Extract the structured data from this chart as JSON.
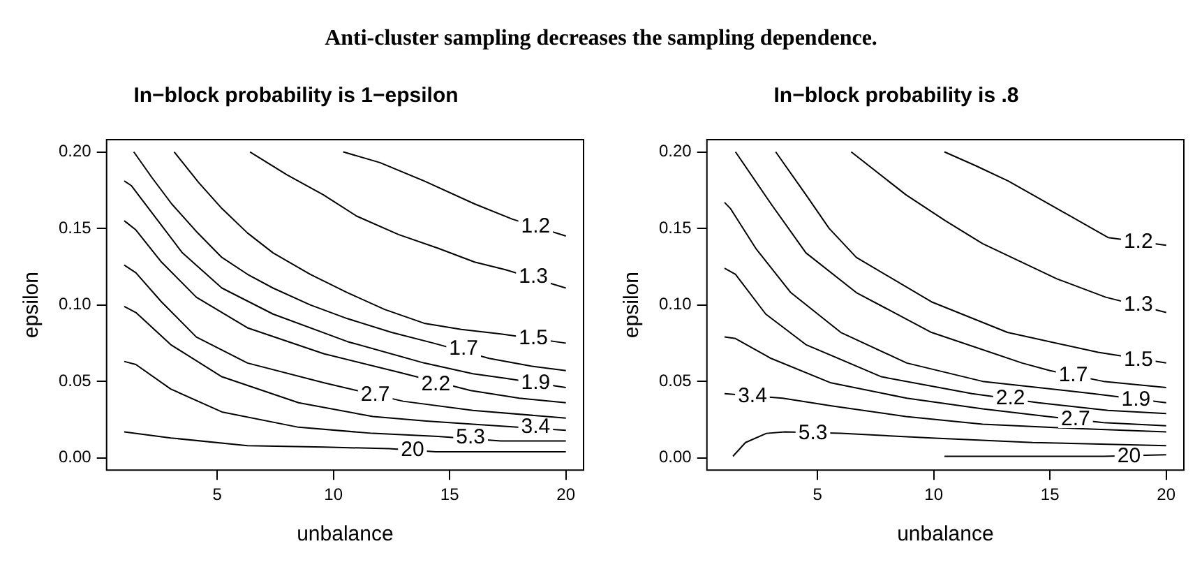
{
  "chart_data": [
    {
      "type": "line",
      "title": "In−block probability is 1−epsilon",
      "xlabel": "unbalance",
      "ylabel": "epsilon",
      "xlim": [
        0.24,
        20.76
      ],
      "ylim": [
        -0.008,
        0.208
      ],
      "xticks": [
        5,
        10,
        15,
        20
      ],
      "yticks": [
        {
          "value": 0,
          "label": "0.00"
        },
        {
          "value": 0.05,
          "label": "0.05"
        },
        {
          "value": 0.1,
          "label": "0.10"
        },
        {
          "value": 0.15,
          "label": "0.15"
        },
        {
          "value": 0.2,
          "label": "0.20"
        }
      ],
      "grid": false,
      "marker": "none",
      "line_style": "solid",
      "annotations": [
        "Anti-cluster sampling decreases the sampling dependence.",
        {
          "text": "1.2",
          "x": 18.7,
          "y": 0.151
        },
        {
          "text": "1.3",
          "x": 18.6,
          "y": 0.118
        },
        {
          "text": "1.5",
          "x": 18.6,
          "y": 0.078
        },
        {
          "text": "1.7",
          "x": 15.6,
          "y": 0.071
        },
        {
          "text": "1.9",
          "x": 18.7,
          "y": 0.049
        },
        {
          "text": "2.2",
          "x": 14.4,
          "y": 0.048
        },
        {
          "text": "2.7",
          "x": 11.8,
          "y": 0.041
        },
        {
          "text": "3.4",
          "x": 18.7,
          "y": 0.02
        },
        {
          "text": "5.3",
          "x": 15.9,
          "y": 0.013
        },
        {
          "text": "20",
          "x": 13.4,
          "y": 0.005
        }
      ],
      "series": [
        {
          "color": "#000000",
          "x": [
            10.42,
            12,
            13.9,
            16.07,
            17.7,
            20
          ],
          "values": [
            0.2,
            0.193,
            0.181,
            0.166,
            0.156,
            0.145
          ]
        },
        {
          "color": "#000000",
          "x": [
            6.41,
            8,
            9.56,
            11,
            12.8,
            14.5,
            16.07,
            17.4,
            20
          ],
          "values": [
            0.2,
            0.185,
            0.172,
            0.158,
            0.146,
            0.137,
            0.128,
            0.123,
            0.111
          ]
        },
        {
          "color": "#000000",
          "x": [
            3.15,
            4.2,
            5.2,
            6.3,
            7.4,
            9,
            10.6,
            12.2,
            13.9,
            15.5,
            17.2,
            20
          ],
          "values": [
            0.2,
            0.18,
            0.163,
            0.147,
            0.134,
            0.12,
            0.108,
            0.097,
            0.088,
            0.084,
            0.081,
            0.075
          ]
        },
        {
          "color": "#000000",
          "x": [
            1.41,
            2.2,
            3.04,
            4.1,
            5.2,
            6.3,
            7.4,
            9,
            10.6,
            12.5,
            14.3,
            16.7,
            18.5,
            20
          ],
          "values": [
            0.2,
            0.183,
            0.166,
            0.148,
            0.131,
            0.12,
            0.111,
            0.1,
            0.091,
            0.082,
            0.075,
            0.065,
            0.06,
            0.057
          ]
        },
        {
          "color": "#000000",
          "x": [
            1,
            1.3,
            2.2,
            3.5,
            5.2,
            7.4,
            10.6,
            13.9,
            16,
            17.4,
            20
          ],
          "values": [
            0.181,
            0.178,
            0.16,
            0.134,
            0.111,
            0.094,
            0.076,
            0.062,
            0.055,
            0.052,
            0.046
          ]
        },
        {
          "color": "#000000",
          "x": [
            1,
            1.5,
            2.6,
            4.1,
            6.3,
            9.6,
            12.8,
            15.9,
            18,
            20
          ],
          "values": [
            0.155,
            0.149,
            0.128,
            0.105,
            0.085,
            0.068,
            0.056,
            0.044,
            0.039,
            0.036
          ]
        },
        {
          "color": "#000000",
          "x": [
            1,
            1.5,
            2.6,
            4.1,
            6.3,
            9.6,
            13,
            16,
            20
          ],
          "values": [
            0.126,
            0.121,
            0.102,
            0.079,
            0.062,
            0.049,
            0.037,
            0.031,
            0.026
          ]
        },
        {
          "color": "#000000",
          "x": [
            1,
            1.5,
            3,
            5.2,
            8.5,
            11.7,
            14,
            16,
            20
          ],
          "values": [
            0.099,
            0.095,
            0.074,
            0.053,
            0.036,
            0.027,
            0.024,
            0.022,
            0.018
          ]
        },
        {
          "color": "#000000",
          "x": [
            1,
            1.5,
            3,
            5.2,
            8.5,
            11.7,
            14.5,
            17.2,
            20
          ],
          "values": [
            0.063,
            0.061,
            0.045,
            0.03,
            0.02,
            0.016,
            0.014,
            0.011,
            0.011
          ]
        },
        {
          "color": "#000000",
          "x": [
            1,
            3,
            6.3,
            9.6,
            12.4,
            14.4,
            20
          ],
          "values": [
            0.017,
            0.013,
            0.008,
            0.007,
            0.006,
            0.004,
            0.004
          ]
        }
      ]
    },
    {
      "type": "line",
      "title": "In−block probability is .8",
      "xlabel": "unbalance",
      "ylabel": "epsilon",
      "xlim": [
        0.24,
        20.76
      ],
      "ylim": [
        -0.008,
        0.208
      ],
      "xticks": [
        5,
        10,
        15,
        20
      ],
      "yticks": [
        {
          "value": 0,
          "label": "0.00"
        },
        {
          "value": 0.05,
          "label": "0.05"
        },
        {
          "value": 0.1,
          "label": "0.10"
        },
        {
          "value": 0.15,
          "label": "0.15"
        },
        {
          "value": 0.2,
          "label": "0.20"
        }
      ],
      "grid": false,
      "marker": "none",
      "line_style": "solid",
      "annotations": [
        {
          "text": "1.2",
          "x": 18.8,
          "y": 0.141
        },
        {
          "text": "1.3",
          "x": 18.8,
          "y": 0.1
        },
        {
          "text": "1.5",
          "x": 18.8,
          "y": 0.064
        },
        {
          "text": "1.7",
          "x": 16,
          "y": 0.054
        },
        {
          "text": "1.9",
          "x": 18.7,
          "y": 0.038
        },
        {
          "text": "2.2",
          "x": 13.3,
          "y": 0.039
        },
        {
          "text": "2.7",
          "x": 16.1,
          "y": 0.025
        },
        {
          "text": "3.4",
          "x": 2.2,
          "y": 0.04
        },
        {
          "text": "5.3",
          "x": 4.8,
          "y": 0.016
        },
        {
          "text": "20",
          "x": 18.4,
          "y": 0.001
        }
      ],
      "series": [
        {
          "color": "#000000",
          "x": [
            10.46,
            11.8,
            13.2,
            15.3,
            17.5,
            20
          ],
          "values": [
            0.2,
            0.191,
            0.181,
            0.163,
            0.144,
            0.139
          ]
        },
        {
          "color": "#000000",
          "x": [
            6.45,
            8.8,
            10.5,
            12.1,
            15.3,
            17.4,
            20
          ],
          "values": [
            0.2,
            0.172,
            0.155,
            0.14,
            0.117,
            0.105,
            0.095
          ]
        },
        {
          "color": "#000000",
          "x": [
            3.2,
            4.5,
            5.5,
            6.67,
            9.9,
            13.17,
            17.07,
            20
          ],
          "values": [
            0.2,
            0.172,
            0.15,
            0.131,
            0.102,
            0.082,
            0.069,
            0.062
          ]
        },
        {
          "color": "#000000",
          "x": [
            1.47,
            3,
            4.5,
            6.67,
            9.9,
            13.8,
            15,
            17.3,
            20
          ],
          "values": [
            0.2,
            0.166,
            0.134,
            0.108,
            0.082,
            0.062,
            0.057,
            0.05,
            0.046
          ]
        },
        {
          "color": "#000000",
          "x": [
            1,
            1.25,
            2.34,
            3.85,
            6,
            8.84,
            12.1,
            16.85,
            20
          ],
          "values": [
            0.167,
            0.163,
            0.137,
            0.108,
            0.082,
            0.062,
            0.05,
            0.042,
            0.036
          ]
        },
        {
          "color": "#000000",
          "x": [
            1,
            1.47,
            2.77,
            4.5,
            7.75,
            11.65,
            14.5,
            17.5,
            20
          ],
          "values": [
            0.124,
            0.12,
            0.094,
            0.074,
            0.053,
            0.042,
            0.036,
            0.031,
            0.029
          ]
        },
        {
          "color": "#000000",
          "x": [
            1,
            1.47,
            3,
            5.58,
            8.84,
            12.1,
            14.9,
            17.3,
            20
          ],
          "values": [
            0.079,
            0.078,
            0.065,
            0.049,
            0.039,
            0.032,
            0.027,
            0.023,
            0.021
          ]
        },
        {
          "color": "#000000",
          "x": [
            1,
            3.5,
            5.6,
            8.8,
            12.1,
            16.4,
            20
          ],
          "values": [
            0.042,
            0.039,
            0.034,
            0.027,
            0.022,
            0.019,
            0.017
          ]
        },
        {
          "color": "#000000",
          "x": [
            1.36,
            1.9,
            2.8,
            3.6,
            6,
            9.9,
            14.25,
            20
          ],
          "values": [
            0.001,
            0.01,
            0.016,
            0.017,
            0.016,
            0.013,
            0.01,
            0.008
          ]
        },
        {
          "color": "#000000",
          "x": [
            10.46,
            17.3,
            20
          ],
          "values": [
            0.001,
            0.001,
            0.002
          ]
        }
      ]
    }
  ]
}
